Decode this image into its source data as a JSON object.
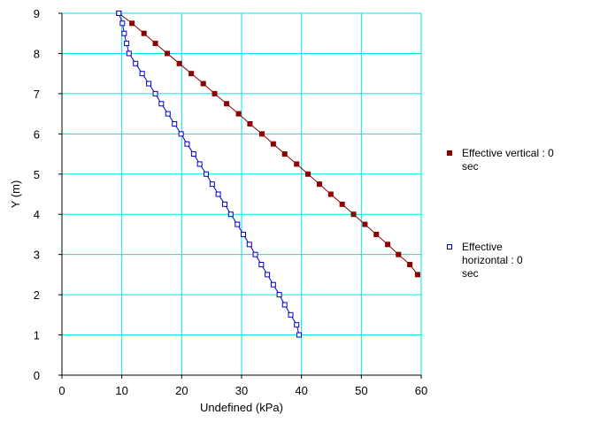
{
  "chart_data": {
    "type": "line",
    "xlabel": "Undefined (kPa)",
    "ylabel": "Y (m)",
    "xlim": [
      0,
      60
    ],
    "ylim": [
      0,
      9
    ],
    "x_ticks": [
      "0",
      "10",
      "20",
      "30",
      "40",
      "50",
      "60"
    ],
    "y_ticks": [
      "0",
      "1",
      "2",
      "3",
      "4",
      "5",
      "6",
      "7",
      "8",
      "9"
    ],
    "grid": true,
    "legend_position": "right",
    "series": [
      {
        "name": "Effective vertical : 0 sec",
        "color": "#8b0000",
        "marker": "filled-square",
        "points": [
          [
            9.5,
            9.0
          ],
          [
            11.7,
            8.75
          ],
          [
            13.7,
            8.5
          ],
          [
            15.6,
            8.25
          ],
          [
            17.6,
            8.0
          ],
          [
            19.6,
            7.75
          ],
          [
            21.6,
            7.5
          ],
          [
            23.6,
            7.25
          ],
          [
            25.5,
            7.0
          ],
          [
            27.5,
            6.75
          ],
          [
            29.5,
            6.5
          ],
          [
            31.4,
            6.25
          ],
          [
            33.4,
            6.0
          ],
          [
            35.3,
            5.75
          ],
          [
            37.2,
            5.5
          ],
          [
            39.2,
            5.25
          ],
          [
            41.1,
            5.0
          ],
          [
            43.0,
            4.75
          ],
          [
            44.9,
            4.5
          ],
          [
            46.8,
            4.25
          ],
          [
            48.7,
            4.0
          ],
          [
            50.6,
            3.75
          ],
          [
            52.5,
            3.5
          ],
          [
            54.4,
            3.25
          ],
          [
            56.2,
            3.0
          ],
          [
            58.1,
            2.75
          ],
          [
            59.4,
            2.5
          ]
        ]
      },
      {
        "name": "Effective horizontal : 0 sec",
        "color": "#0000cd",
        "marker": "open-square",
        "points": [
          [
            9.5,
            9.0
          ],
          [
            10.1,
            8.75
          ],
          [
            10.4,
            8.5
          ],
          [
            10.8,
            8.25
          ],
          [
            11.2,
            8.0
          ],
          [
            12.3,
            7.75
          ],
          [
            13.4,
            7.5
          ],
          [
            14.5,
            7.25
          ],
          [
            15.6,
            7.0
          ],
          [
            16.6,
            6.75
          ],
          [
            17.7,
            6.5
          ],
          [
            18.8,
            6.25
          ],
          [
            19.9,
            6.0
          ],
          [
            20.9,
            5.75
          ],
          [
            22.0,
            5.5
          ],
          [
            23.0,
            5.25
          ],
          [
            24.1,
            5.0
          ],
          [
            25.1,
            4.75
          ],
          [
            26.1,
            4.5
          ],
          [
            27.2,
            4.25
          ],
          [
            28.2,
            4.0
          ],
          [
            29.3,
            3.75
          ],
          [
            30.3,
            3.5
          ],
          [
            31.3,
            3.25
          ],
          [
            32.3,
            3.0
          ],
          [
            33.3,
            2.75
          ],
          [
            34.3,
            2.5
          ],
          [
            35.3,
            2.25
          ],
          [
            36.3,
            2.0
          ],
          [
            37.2,
            1.75
          ],
          [
            38.2,
            1.5
          ],
          [
            39.2,
            1.25
          ],
          [
            39.6,
            1.0
          ]
        ]
      }
    ]
  }
}
